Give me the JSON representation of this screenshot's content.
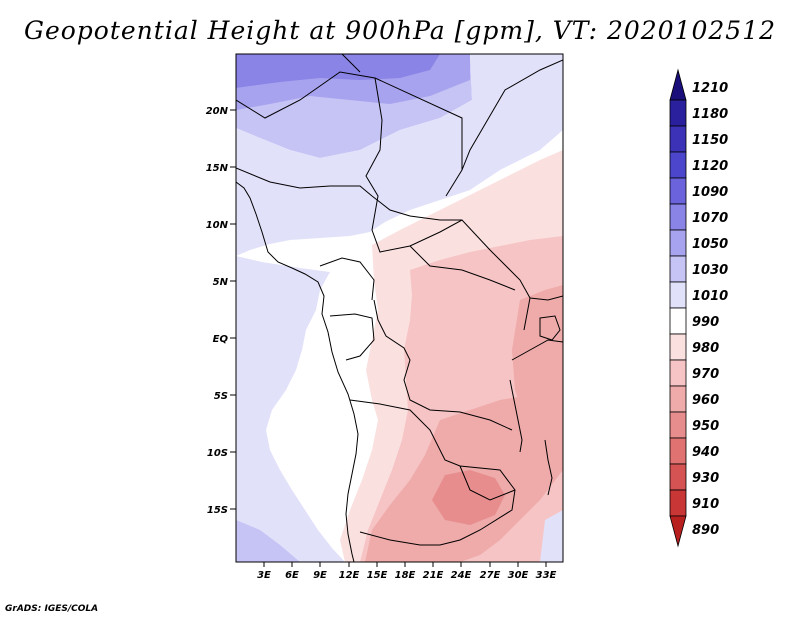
{
  "title": "Geopotential Height at 900hPa [gpm], VT: 2020102512",
  "credit": "GrADS: IGES/COLA",
  "map": {
    "lat_labels": [
      "20N",
      "15N",
      "10N",
      "5N",
      "EQ",
      "5S",
      "10S",
      "15S"
    ],
    "lon_labels": [
      "3E",
      "6E",
      "9E",
      "12E",
      "15E",
      "18E",
      "21E",
      "24E",
      "27E",
      "30E",
      "33E"
    ]
  },
  "colorbar": {
    "labels": [
      "1210",
      "1180",
      "1150",
      "1120",
      "1090",
      "1070",
      "1050",
      "1030",
      "1010",
      "990",
      "980",
      "970",
      "960",
      "950",
      "940",
      "930",
      "910",
      "890"
    ],
    "colors": [
      "#1a0f7a",
      "#2a1f9c",
      "#3b32b8",
      "#4c46cc",
      "#6a63dc",
      "#8a84e6",
      "#a8a3ee",
      "#c6c3f5",
      "#e2e1fa",
      "#ffffff",
      "#fbe0e0",
      "#f6c4c4",
      "#efaaaa",
      "#e88d8d",
      "#e07272",
      "#d65353",
      "#c93636",
      "#b81f1f"
    ]
  }
}
